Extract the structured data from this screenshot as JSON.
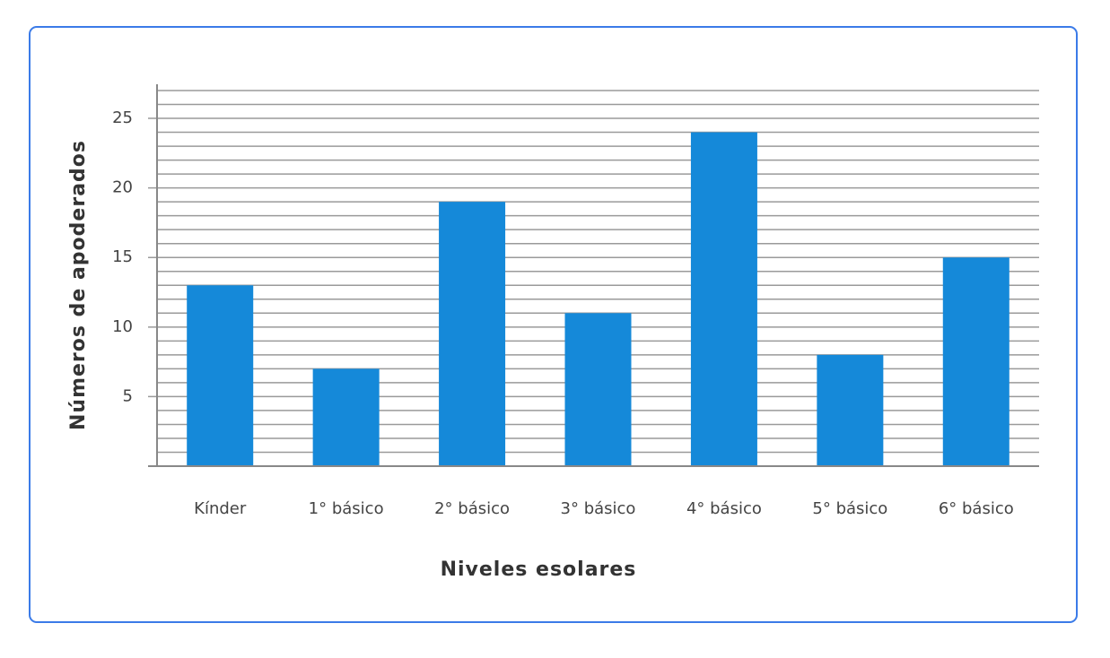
{
  "chart_data": {
    "type": "bar",
    "x_label": "Niveles esolares",
    "y_label": "Números de apoderados",
    "categories": [
      "Kínder",
      "1° básico",
      "2° básico",
      "3° básico",
      "4° básico",
      "5° básico",
      "6° básico"
    ],
    "values": [
      13,
      7,
      19,
      11,
      24,
      8,
      15
    ],
    "color": "#1589d9",
    "ylim": [
      0,
      27
    ],
    "yticks": [
      5,
      10,
      15,
      20,
      25
    ],
    "y_minor_ticks": [
      1,
      2,
      3,
      4,
      6,
      7,
      8,
      9,
      11,
      12,
      13,
      14,
      16,
      17,
      18,
      19,
      21,
      22,
      23,
      24,
      26,
      27
    ],
    "grid": true
  }
}
